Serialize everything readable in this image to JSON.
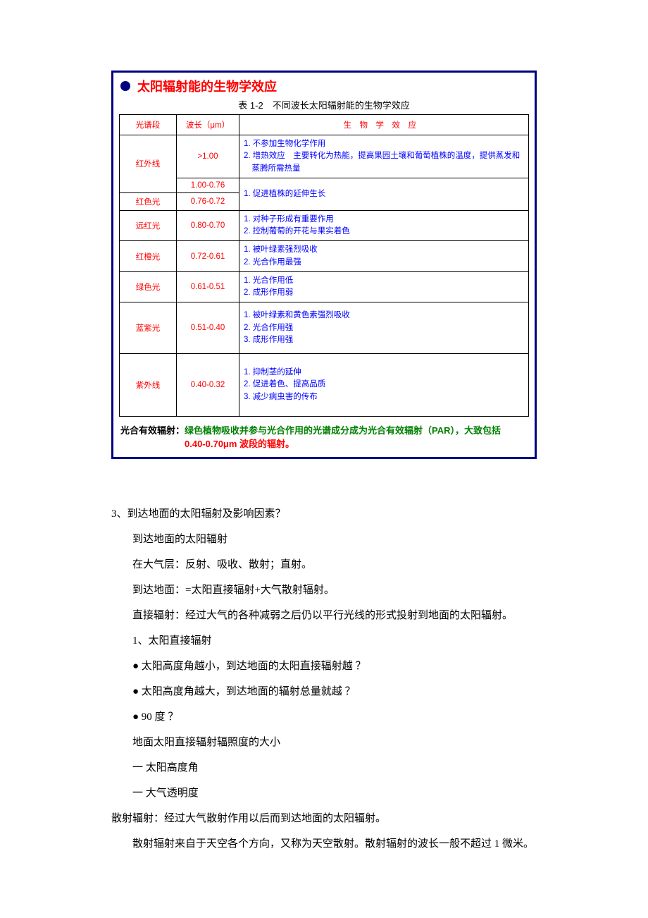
{
  "slide": {
    "title": "太阳辐射能的生物学效应",
    "caption": "表 1-2　不同波长太阳辐射能的生物学效应",
    "headers": {
      "band": "光谱段",
      "wavelength": "波长（μm）",
      "effect": "生物学效应"
    },
    "rows": {
      "r1_band": "红外线",
      "r1_wave": ">1.00",
      "r1_eff_l1": "1. 不参加生物化学作用",
      "r1_eff_l2": "2. 增热效应　主要转化为热能，提高果园土壤和葡萄植株的温度，提供蒸发和蒸腾所需热量",
      "r2_wave": "1.00-0.76",
      "r3_band": "红色光",
      "r3_wave": "0.76-0.72",
      "r23_eff": "1. 促进植株的延伸生长",
      "r4_band": "远红光",
      "r4_wave": "0.80-0.70",
      "r4_eff_l1": "1. 对种子形成有重要作用",
      "r4_eff_l2": "2. 控制葡萄的开花与果实着色",
      "r5_band": "红橙光",
      "r5_wave": "0.72-0.61",
      "r5_eff_l1": "1. 被叶绿素强烈吸收",
      "r5_eff_l2": "2. 光合作用最强",
      "r6_band": "绿色光",
      "r6_wave": "0.61-0.51",
      "r6_eff_l1": "1. 光合作用低",
      "r6_eff_l2": "2. 成形作用弱",
      "r7_band": "蓝紫光",
      "r7_wave": "0.51-0.40",
      "r7_eff_l1": "1. 被叶绿素和黄色素强烈吸收",
      "r7_eff_l2": "2. 光合作用强",
      "r7_eff_l3": "3. 成形作用强",
      "r8_band": "紫外线",
      "r8_wave": "0.40-0.32",
      "r8_eff_l1": "1. 抑制茎的延伸",
      "r8_eff_l2": "2. 促进着色、提高品质",
      "r8_eff_l3": "3. 减少病虫害的传布"
    },
    "footer": {
      "label": "光合有效辐射：",
      "green": "绿色植物吸收并参与光合作用的光谱成分成为光合有效辐射（PAR），大致包括",
      "red": "0.40-0.70μm 波段的辐射。"
    }
  },
  "body": {
    "q3": "3、到达地面的太阳辐射及影响因素？",
    "p1": "到达地面的太阳辐射",
    "p2": "在大气层：反射、吸收、散射；直射。",
    "p3": "到达地面：=太阳直接辐射+大气散射辐射。",
    "p4": "直接辐射：经过大气的各种减弱之后仍以平行光线的形式投射到地面的太阳辐射。",
    "p5": "1、太阳直接辐射",
    "p6": "●  太阳高度角越小，到达地面的太阳直接辐射越  ？",
    "p7": "●  太阳高度角越大，到达地面的辐射总量就越  ？",
    "p8": "●  90 度  ？",
    "p9": "地面太阳直接辐射辐照度的大小",
    "p10": "一  太阳高度角",
    "p11": "一  大气透明度",
    "p12": "散射辐射：经过大气散射作用以后而到达地面的太阳辐射。",
    "p13": "散射辐射来自于天空各个方向，又称为天空散射。散射辐射的波长一般不超过 1 微米。"
  }
}
